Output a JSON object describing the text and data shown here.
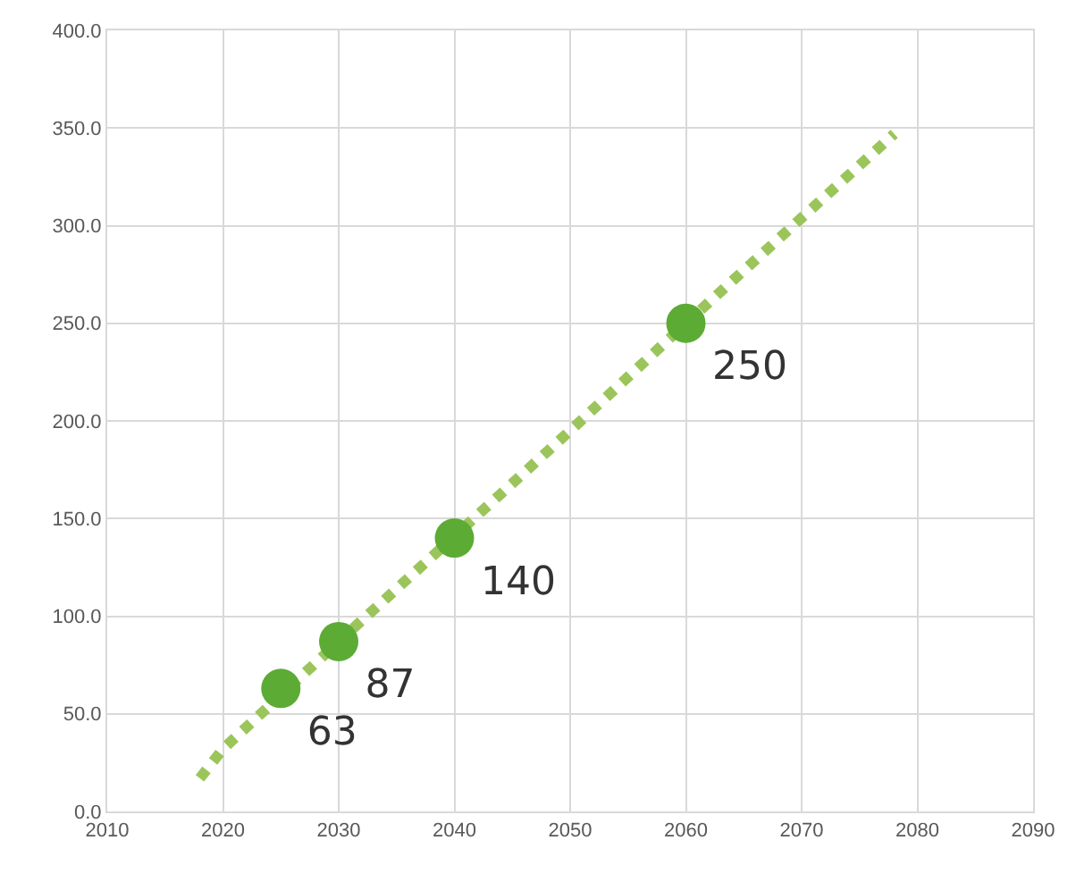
{
  "chart_data": {
    "type": "line",
    "series": [
      {
        "color": "#9bc55a",
        "line_style": "dotted",
        "marker": "none",
        "x": [
          2018,
          2020,
          2030,
          2040,
          2050,
          2060,
          2070,
          2078
        ],
        "values": [
          17,
          32,
          87,
          141,
          195,
          250,
          304,
          347
        ]
      },
      {
        "type": "scatter",
        "color": "#5cab35",
        "marker": "circle",
        "x": [
          2025,
          2030,
          2040,
          2060
        ],
        "values": [
          63,
          87,
          140,
          250
        ],
        "data_labels": true
      }
    ],
    "xlim": [
      2010,
      2090
    ],
    "xticks": [
      2010,
      2020,
      2030,
      2040,
      2050,
      2060,
      2070,
      2080,
      2090
    ],
    "ylim": [
      0,
      400
    ],
    "yticks": [
      {
        "value": 0,
        "label": "0.0"
      },
      {
        "value": 50,
        "label": "50.0"
      },
      {
        "value": 100,
        "label": "100.0"
      },
      {
        "value": 150,
        "label": "150.0"
      },
      {
        "value": 200,
        "label": "200.0"
      },
      {
        "value": 250,
        "label": "250.0"
      },
      {
        "value": 300,
        "label": "300.0"
      },
      {
        "value": 350,
        "label": "350.0"
      },
      {
        "value": 400,
        "label": "400.0"
      }
    ],
    "grid": true
  }
}
